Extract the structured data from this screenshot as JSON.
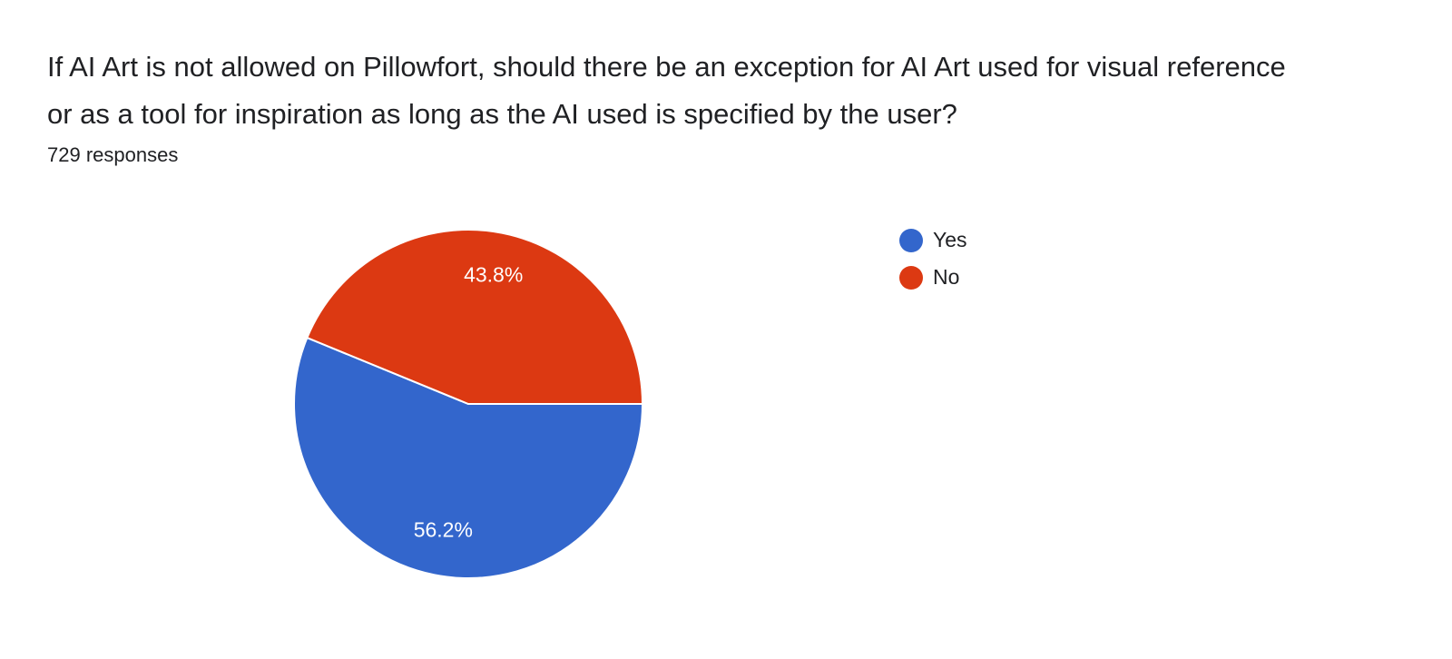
{
  "chart_data": {
    "type": "pie",
    "title": "If AI Art is not allowed on Pillowfort, should there be an exception for AI Art used for visual reference or as a tool for inspiration as long as the AI used is specified by the user?",
    "subtitle": "729 responses",
    "categories": [
      "Yes",
      "No"
    ],
    "values": [
      56.2,
      43.8
    ],
    "value_labels": [
      "56.2%",
      "43.8%"
    ],
    "colors": [
      "#3366cc",
      "#dc3912"
    ],
    "legend": "right"
  }
}
